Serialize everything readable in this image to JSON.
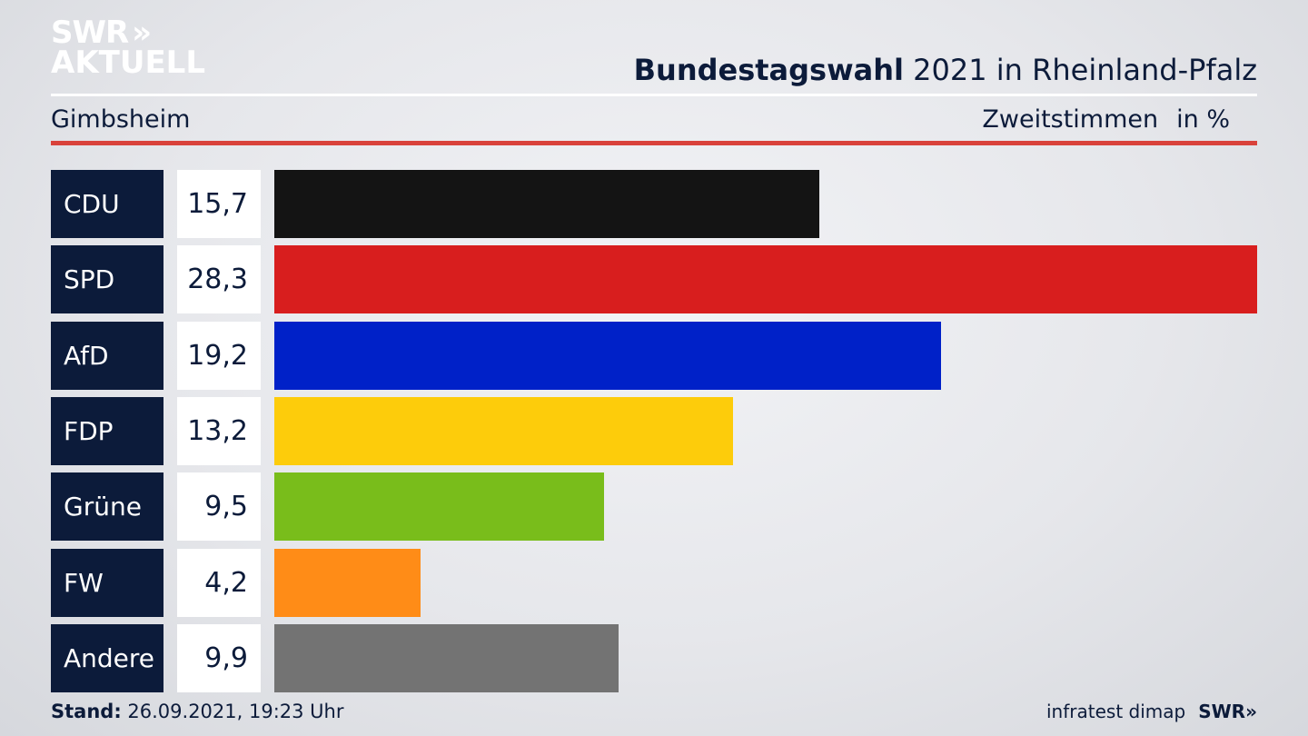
{
  "brand": {
    "line1": "SWR",
    "line2": "AKTUELL",
    "arrows": "»"
  },
  "header": {
    "title_strong": "Bundestagswahl",
    "title_rest": " 2021 in Rheinland-Pfalz",
    "location": "Gimbsheim",
    "measure": "Zweitstimmen",
    "unit": "in %"
  },
  "chart_data": {
    "type": "bar",
    "orientation": "horizontal",
    "title": "Bundestagswahl 2021 in Rheinland-Pfalz",
    "subtitle": "Gimbsheim",
    "ylabel": "Zweitstimmen in %",
    "categories": [
      "CDU",
      "SPD",
      "AfD",
      "FDP",
      "Grüne",
      "FW",
      "Andere"
    ],
    "values": [
      15.7,
      28.3,
      19.2,
      13.2,
      9.5,
      4.2,
      9.9
    ],
    "labels": [
      "15,7",
      "28,3",
      "19,2",
      "13,2",
      "9,5",
      "4,2",
      "9,9"
    ],
    "colors": [
      "#141414",
      "#d81e1e",
      "#0021c8",
      "#fdcc0b",
      "#79bd1b",
      "#ff8c17",
      "#737373"
    ],
    "xlim": [
      0,
      28.3
    ],
    "grid": false,
    "legend": "none"
  },
  "footer": {
    "stand_label": "Stand:",
    "stand_value": " 26.09.2021, 19:23 Uhr",
    "source": "infratest dimap",
    "swr": "SWR»"
  }
}
